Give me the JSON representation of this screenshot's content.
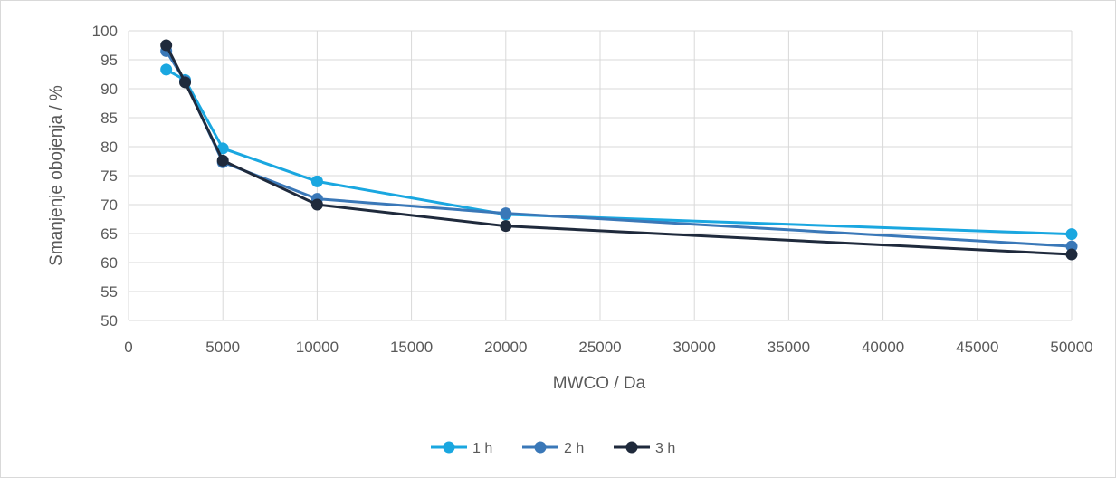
{
  "chart_data": {
    "type": "line",
    "title": "",
    "xlabel": "MWCO / Da",
    "ylabel": "Smanjenje obojenja / %",
    "xlim": [
      0,
      50000
    ],
    "ylim": [
      50,
      100
    ],
    "x_ticks": [
      0,
      5000,
      10000,
      15000,
      20000,
      25000,
      30000,
      35000,
      40000,
      45000,
      50000
    ],
    "y_ticks": [
      50,
      55,
      60,
      65,
      70,
      75,
      80,
      85,
      90,
      95,
      100
    ],
    "grid": true,
    "legend_position": "bottom",
    "x": [
      2000,
      3000,
      5000,
      10000,
      20000,
      50000
    ],
    "series": [
      {
        "name": "1 h",
        "color": "#1aa7e0",
        "values": [
          93.3,
          91.5,
          79.7,
          74.0,
          68.3,
          64.9
        ]
      },
      {
        "name": "2 h",
        "color": "#3a78b8",
        "values": [
          96.5,
          91.3,
          77.3,
          71.0,
          68.5,
          62.8
        ]
      },
      {
        "name": "3 h",
        "color": "#1f2a3c",
        "values": [
          97.5,
          91.1,
          77.6,
          70.0,
          66.3,
          61.4
        ]
      }
    ]
  }
}
